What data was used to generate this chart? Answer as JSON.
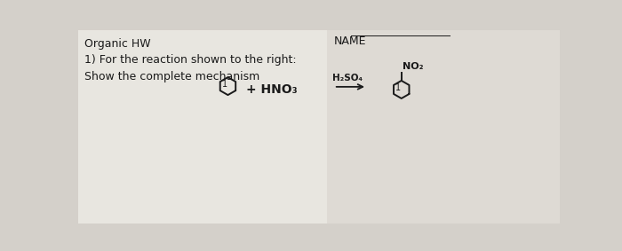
{
  "bg_left": "#e8e6e0",
  "bg_right": "#dedad4",
  "bg_overall": "#d4d0ca",
  "title_left": "Organic HW",
  "title_right": "NAME",
  "question": "1) For the reaction shown to the right:",
  "instruction": "Show the complete mechanism",
  "reagent_above": "H₂SO₄",
  "reagent_plus": "+ HNO₃",
  "reactant_label": "1",
  "product_label": "1",
  "product_substituent": "NO₂",
  "text_color": "#1a1a1a",
  "benzene_color": "#1a1a1a",
  "font_size": 9,
  "font_size_chem": 8
}
